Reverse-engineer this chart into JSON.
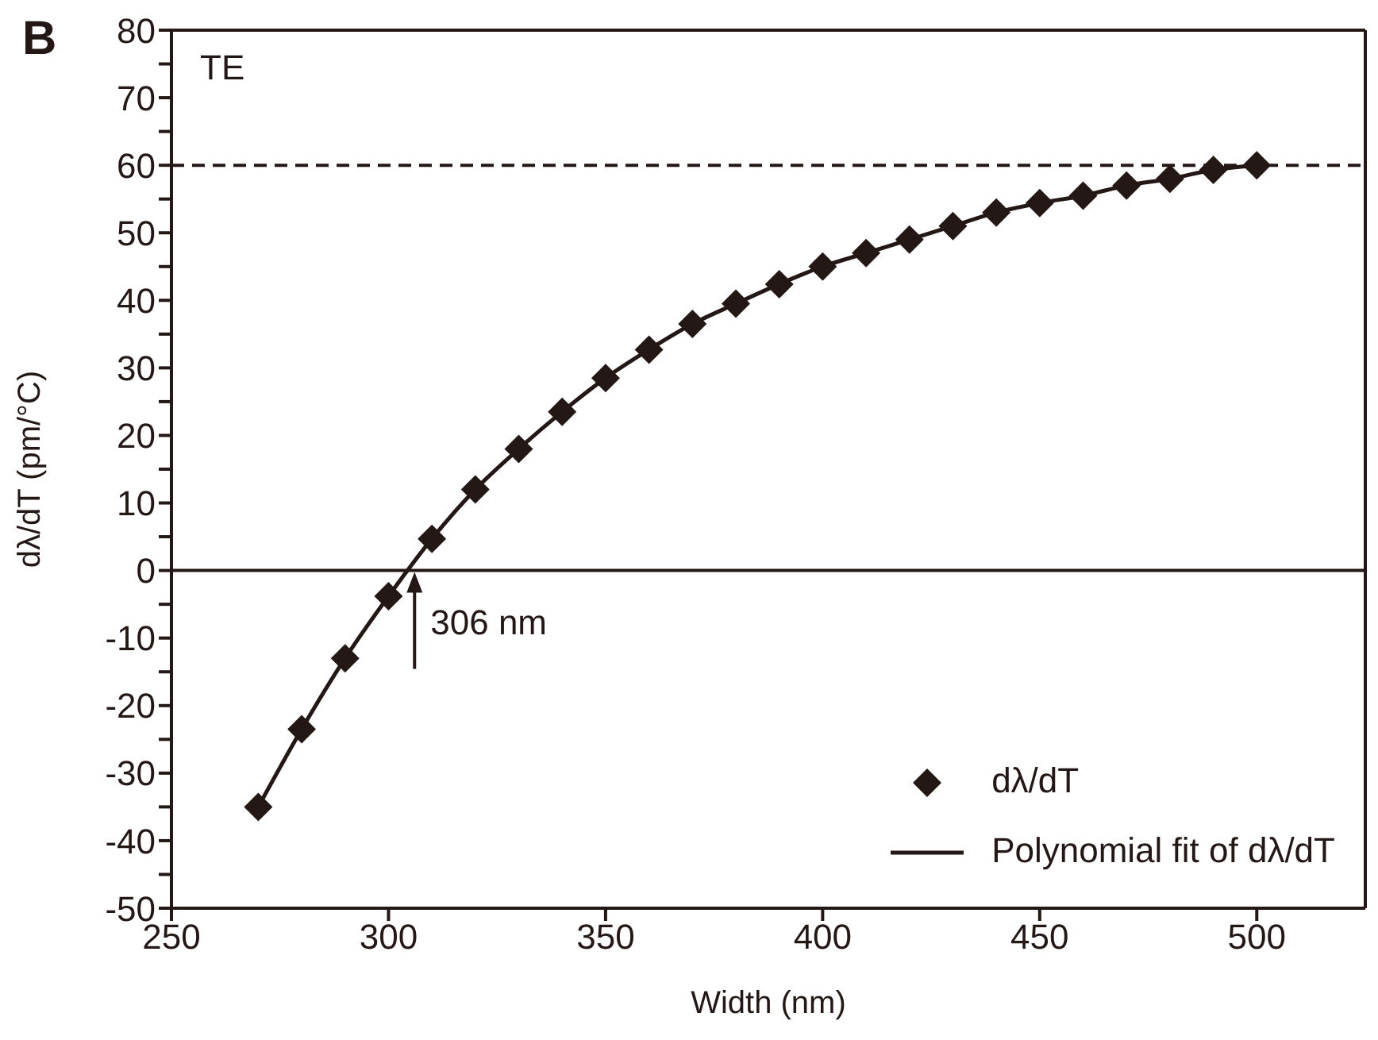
{
  "chart_data": {
    "type": "scatter",
    "xlabel": "Width (nm)",
    "ylabel": "dλ/dT (pm/°C)",
    "annotations": [
      "B",
      "TE",
      {
        "text": "306 nm",
        "x": 306,
        "y": 0
      }
    ],
    "x": [
      270,
      280,
      290,
      300,
      310,
      320,
      330,
      340,
      350,
      360,
      370,
      380,
      390,
      400,
      410,
      420,
      430,
      440,
      450,
      460,
      470,
      480,
      490,
      500
    ],
    "series": [
      {
        "name": "dλ/dT",
        "color": "#231815",
        "marker": "diamond",
        "values": [
          -35,
          -23.5,
          -13,
          -3.8,
          4.7,
          12,
          18,
          23.5,
          28.5,
          32.7,
          36.5,
          39.5,
          42.4,
          45,
          47,
          49,
          51,
          53,
          54.4,
          55.5,
          57,
          58,
          59.3,
          60
        ]
      },
      {
        "name": "Polynomial fit of dλ/dT",
        "type": "line",
        "color": "#231815",
        "marker": "none",
        "line_style": "solid",
        "values": [
          -35,
          -23.5,
          -13,
          -3.8,
          4.7,
          12,
          18,
          23.5,
          28.5,
          32.7,
          36.5,
          39.5,
          42.4,
          45,
          47,
          49,
          51,
          53,
          54.4,
          55.5,
          57,
          58,
          59.3,
          60
        ]
      }
    ],
    "ref_lines": [
      {
        "axis": "y",
        "value": 60,
        "line_style": "dashed",
        "color": "#231815"
      },
      {
        "axis": "y",
        "value": 0,
        "line_style": "solid",
        "color": "#231815"
      }
    ],
    "xlim": [
      250,
      525
    ],
    "xticks": [
      250,
      300,
      350,
      400,
      450,
      500
    ],
    "ylim": [
      -50,
      80
    ],
    "yticks": [
      -50,
      {
        "value": -45,
        "label": null
      },
      -40,
      {
        "value": -35,
        "label": null
      },
      -30,
      {
        "value": -25,
        "label": null
      },
      -20,
      {
        "value": -15,
        "label": null
      },
      -10,
      {
        "value": -5,
        "label": null
      },
      0,
      {
        "value": 5,
        "label": null
      },
      10,
      {
        "value": 15,
        "label": null
      },
      20,
      {
        "value": 25,
        "label": null
      },
      30,
      {
        "value": 35,
        "label": null
      },
      40,
      {
        "value": 45,
        "label": null
      },
      50,
      {
        "value": 55,
        "label": null
      },
      60,
      {
        "value": 65,
        "label": null
      },
      70,
      {
        "value": 75,
        "label": null
      },
      80
    ],
    "grid": false,
    "legend": "bottom right"
  }
}
